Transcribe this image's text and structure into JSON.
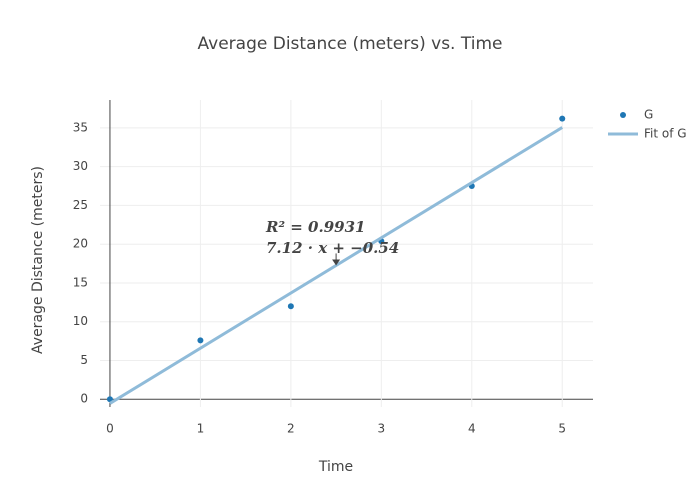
{
  "chart_data": {
    "type": "scatter",
    "title": "Average Distance (meters) vs. Time",
    "x_label": "Time",
    "y_label": "Average Distance (meters)",
    "xlim": [
      -0.11,
      5.34
    ],
    "ylim": [
      -1,
      38.6
    ],
    "xticks": [
      0,
      1,
      2,
      3,
      4,
      5
    ],
    "yticks": [
      0,
      5,
      10,
      15,
      20,
      25,
      30,
      35
    ],
    "grid": true,
    "legend": "top-right",
    "series": [
      {
        "name": "G",
        "mode": "markers",
        "color": "#1f77b4",
        "x": [
          0,
          1,
          2,
          3,
          4,
          5
        ],
        "values": [
          0,
          7.6,
          12,
          20.4,
          27.5,
          36.2
        ]
      },
      {
        "name": "Fit of G",
        "mode": "line",
        "color": "#8fbbd9",
        "x": [
          0,
          5
        ],
        "values": [
          -0.54,
          35.06
        ]
      }
    ],
    "annotation": {
      "lines": [
        "R² = 0.9931",
        "7.12 · x + −0.54"
      ],
      "x": 2.5,
      "y": 17.26
    }
  }
}
